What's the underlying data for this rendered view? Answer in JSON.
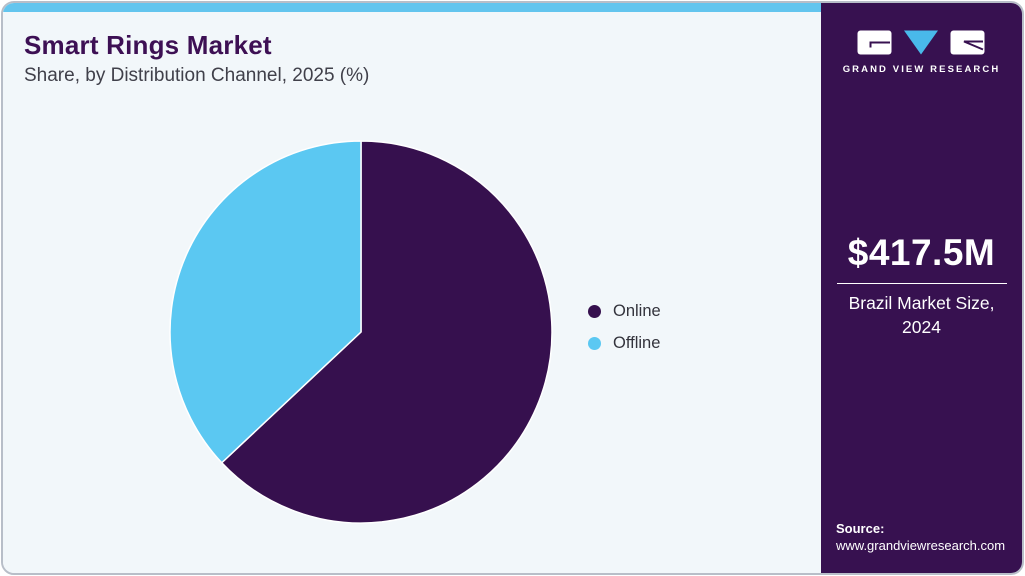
{
  "header": {
    "title": "Smart Rings Market",
    "subtitle": "Share, by Distribution Channel, 2025 (%)"
  },
  "chart_data": {
    "type": "pie",
    "title": "Smart Rings Market Share, by Distribution Channel, 2025 (%)",
    "unit": "%",
    "categories": [
      "Online",
      "Offline"
    ],
    "series": [
      {
        "name": "Online",
        "value": 63,
        "color": "#36104e"
      },
      {
        "name": "Offline",
        "value": 37,
        "color": "#5bc8f2"
      }
    ],
    "legend_position": "right",
    "start_angle_deg": 0,
    "direction": "clockwise",
    "data_labels_shown": false
  },
  "sidebar": {
    "brand": "GRAND VIEW RESEARCH",
    "metric": {
      "value": "$417.5M",
      "label": "Brazil Market Size, 2024"
    },
    "source": {
      "label": "Source:",
      "url": "www.grandviewresearch.com"
    }
  },
  "colors": {
    "accent_bar": "#63c5ee",
    "panel_bg": "#f2f7fa",
    "sidebar_bg": "#371150",
    "title_text": "#3d1054",
    "subtitle_text": "#40404a",
    "legend_text": "#33333c",
    "online_slice": "#36104e",
    "offline_slice": "#5bc8f2",
    "logo_triangle": "#49b9ea",
    "slice_border": "#ffffff"
  }
}
